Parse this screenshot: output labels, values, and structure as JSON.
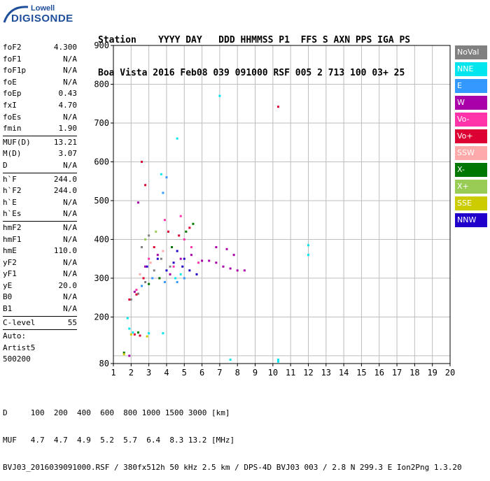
{
  "logo": {
    "line1": "Lowell",
    "line2": "DIGISONDE"
  },
  "header": {
    "row1": "Station    YYYY DAY   DDD HHMMSS P1  FFS S AXN PPS IGA PS",
    "row2": "Boa Vista 2016 Feb08 039 091000 RSF 005 2 713 100 03+ 25"
  },
  "sidebar": {
    "group1": [
      {
        "k": "foF2",
        "v": "4.300"
      },
      {
        "k": "foF1",
        "v": "N/A"
      },
      {
        "k": "foF1p",
        "v": "N/A"
      },
      {
        "k": "foE",
        "v": "N/A"
      },
      {
        "k": "foEp",
        "v": "0.43"
      },
      {
        "k": "fxI",
        "v": "4.70"
      },
      {
        "k": "foEs",
        "v": "N/A"
      },
      {
        "k": "fmin",
        "v": "1.90"
      }
    ],
    "group2": [
      {
        "k": "MUF(D)",
        "v": "13.21"
      },
      {
        "k": "M(D)",
        "v": "3.07"
      },
      {
        "k": "D",
        "v": "N/A"
      }
    ],
    "group3": [
      {
        "k": "h`F",
        "v": "244.0"
      },
      {
        "k": "h`F2",
        "v": "244.0"
      },
      {
        "k": "h`E",
        "v": "N/A"
      },
      {
        "k": "h`Es",
        "v": "N/A"
      }
    ],
    "group4": [
      {
        "k": "hmF2",
        "v": "N/A"
      },
      {
        "k": "hmF1",
        "v": "N/A"
      },
      {
        "k": "hmE",
        "v": "110.0"
      },
      {
        "k": "yF2",
        "v": "N/A"
      },
      {
        "k": "yF1",
        "v": "N/A"
      },
      {
        "k": "yE",
        "v": "20.0"
      },
      {
        "k": "B0",
        "v": "N/A"
      },
      {
        "k": "B1",
        "v": "N/A"
      }
    ],
    "group5": [
      {
        "k": "C-level",
        "v": "55"
      }
    ],
    "auto": [
      "Auto:",
      "Artist5",
      "500200"
    ]
  },
  "legend": [
    {
      "label": "NoVal",
      "color": "#808080"
    },
    {
      "label": "NNE",
      "color": "#00e5ee"
    },
    {
      "label": "E",
      "color": "#3399ff"
    },
    {
      "label": "W",
      "color": "#aa00aa"
    },
    {
      "label": "Vo-",
      "color": "#ff33aa"
    },
    {
      "label": "Vo+",
      "color": "#dd0033"
    },
    {
      "label": "SSW",
      "color": "#ffaaaa"
    },
    {
      "label": "X-",
      "color": "#007700"
    },
    {
      "label": "X+",
      "color": "#99cc55"
    },
    {
      "label": "SSE",
      "color": "#cccc00"
    },
    {
      "label": "NNW",
      "color": "#2200cc"
    }
  ],
  "bottom": {
    "row1": "D     100  200  400  600  800 1000 1500 3000 [km]",
    "row2": "MUF   4.7  4.7  4.9  5.2  5.7  6.4  8.3 13.2 [MHz]",
    "row3": "BVJ03_2016039091000.RSF / 380fx512h 50 kHz 2.5 km / DPS-4D BVJ03 003 / 2.8 N 299.3 E Ion2Png 1.3.20"
  },
  "chart_data": {
    "type": "scatter",
    "title": "",
    "xlabel": "",
    "ylabel": "",
    "xlim": [
      1,
      20
    ],
    "ylim": [
      80,
      900
    ],
    "x_ticks": [
      1,
      2,
      3,
      4,
      5,
      6,
      7,
      8,
      9,
      10,
      11,
      12,
      13,
      14,
      15,
      16,
      17,
      18,
      19,
      20
    ],
    "y_ticks": [
      80,
      200,
      300,
      400,
      500,
      600,
      700,
      800,
      900
    ],
    "grid": true,
    "series": [
      {
        "name": "NoVal",
        "points": [
          [
            2.0,
            245
          ],
          [
            2.4,
            260
          ],
          [
            2.8,
            290
          ],
          [
            3.3,
            320
          ],
          [
            3.7,
            350
          ],
          [
            4.2,
            330
          ],
          [
            2.6,
            380
          ],
          [
            3.0,
            410
          ]
        ]
      },
      {
        "name": "NNE",
        "points": [
          [
            1.8,
            197
          ],
          [
            2.1,
            160
          ],
          [
            3.0,
            158
          ],
          [
            3.8,
            158
          ],
          [
            4.5,
            300
          ],
          [
            4.8,
            310
          ],
          [
            7.6,
            90
          ],
          [
            10.3,
            85
          ],
          [
            10.3,
            90
          ],
          [
            12.0,
            360
          ],
          [
            12.0,
            385
          ],
          [
            3.7,
            568
          ],
          [
            4.6,
            660
          ],
          [
            7.0,
            770
          ],
          [
            1.9,
            170
          ]
        ]
      },
      {
        "name": "E",
        "points": [
          [
            2.6,
            280
          ],
          [
            3.2,
            300
          ],
          [
            3.9,
            290
          ],
          [
            4.6,
            290
          ],
          [
            5.0,
            300
          ],
          [
            3.8,
            520
          ],
          [
            4.0,
            560
          ]
        ]
      },
      {
        "name": "W",
        "points": [
          [
            2.2,
            265
          ],
          [
            2.8,
            330
          ],
          [
            3.5,
            360
          ],
          [
            4.2,
            310
          ],
          [
            4.8,
            350
          ],
          [
            5.4,
            360
          ],
          [
            6.0,
            345
          ],
          [
            6.4,
            345
          ],
          [
            6.8,
            340
          ],
          [
            7.2,
            330
          ],
          [
            7.6,
            325
          ],
          [
            8.0,
            320
          ],
          [
            8.4,
            320
          ],
          [
            6.8,
            380
          ],
          [
            7.4,
            375
          ],
          [
            7.8,
            360
          ],
          [
            2.4,
            495
          ],
          [
            1.9,
            100
          ]
        ]
      },
      {
        "name": "Vo-",
        "points": [
          [
            2.3,
            270
          ],
          [
            3.0,
            350
          ],
          [
            3.6,
            300
          ],
          [
            4.4,
            330
          ],
          [
            5.0,
            400
          ],
          [
            5.4,
            380
          ],
          [
            5.8,
            340
          ],
          [
            3.9,
            450
          ],
          [
            4.8,
            460
          ]
        ]
      },
      {
        "name": "Vo+",
        "points": [
          [
            1.9,
            245
          ],
          [
            2.3,
            258
          ],
          [
            2.7,
            300
          ],
          [
            3.3,
            380
          ],
          [
            4.1,
            420
          ],
          [
            4.7,
            410
          ],
          [
            5.3,
            430
          ],
          [
            2.2,
            155
          ],
          [
            2.5,
            152
          ],
          [
            10.3,
            742
          ],
          [
            2.6,
            600
          ],
          [
            2.8,
            540
          ]
        ]
      },
      {
        "name": "SSW",
        "points": [
          [
            2.5,
            310
          ],
          [
            3.1,
            340
          ],
          [
            3.8,
            370
          ]
        ]
      },
      {
        "name": "X-",
        "points": [
          [
            1.6,
            108
          ],
          [
            2.4,
            160
          ],
          [
            3.0,
            285
          ],
          [
            3.6,
            300
          ],
          [
            4.3,
            380
          ],
          [
            5.1,
            420
          ],
          [
            5.5,
            440
          ]
        ]
      },
      {
        "name": "X+",
        "points": [
          [
            2.8,
            400
          ],
          [
            3.4,
            420
          ]
        ]
      },
      {
        "name": "SSE",
        "points": [
          [
            1.6,
            104
          ],
          [
            2.0,
            155
          ],
          [
            2.9,
            150
          ]
        ]
      },
      {
        "name": "NNW",
        "points": [
          [
            2.9,
            330
          ],
          [
            3.5,
            350
          ],
          [
            4.0,
            320
          ],
          [
            4.4,
            340
          ],
          [
            4.9,
            330
          ],
          [
            5.3,
            320
          ],
          [
            5.7,
            310
          ],
          [
            5.0,
            350
          ],
          [
            4.6,
            370
          ]
        ]
      }
    ]
  }
}
